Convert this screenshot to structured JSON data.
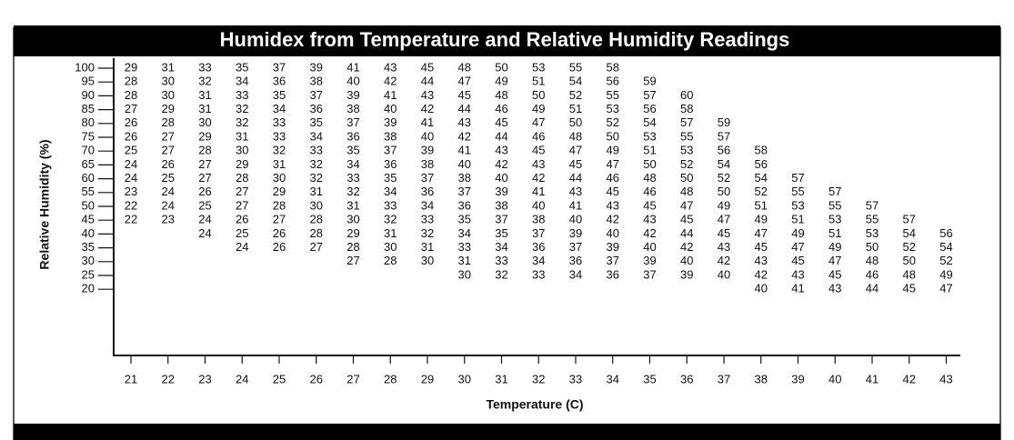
{
  "header": {
    "title": "Humidex from Temperature and Relative Humidity Readings"
  },
  "table": {
    "y_axis_label": "Relative Humidity (%)",
    "x_axis_label": "Temperature (C)",
    "humidity": [
      100,
      95,
      90,
      85,
      80,
      75,
      70,
      65,
      60,
      55,
      50,
      45,
      40,
      35,
      30,
      25,
      20
    ],
    "temperatures": [
      21,
      22,
      23,
      24,
      25,
      26,
      27,
      28,
      29,
      30,
      31,
      32,
      33,
      34,
      35,
      36,
      37,
      38,
      39,
      40,
      41,
      42,
      43
    ],
    "rows": [
      [
        29,
        31,
        33,
        35,
        37,
        39,
        41,
        43,
        45,
        48,
        50,
        53,
        55,
        58,
        null,
        null,
        null,
        null,
        null,
        null,
        null,
        null,
        null
      ],
      [
        28,
        30,
        32,
        34,
        36,
        38,
        40,
        42,
        44,
        47,
        49,
        51,
        54,
        56,
        59,
        null,
        null,
        null,
        null,
        null,
        null,
        null,
        null
      ],
      [
        28,
        30,
        31,
        33,
        35,
        37,
        39,
        41,
        43,
        45,
        48,
        50,
        52,
        55,
        57,
        60,
        null,
        null,
        null,
        null,
        null,
        null,
        null
      ],
      [
        27,
        29,
        31,
        32,
        34,
        36,
        38,
        40,
        42,
        44,
        46,
        49,
        51,
        53,
        56,
        58,
        null,
        null,
        null,
        null,
        null,
        null,
        null
      ],
      [
        26,
        28,
        30,
        32,
        33,
        35,
        37,
        39,
        41,
        43,
        45,
        47,
        50,
        52,
        54,
        57,
        59,
        null,
        null,
        null,
        null,
        null,
        null
      ],
      [
        26,
        27,
        29,
        31,
        33,
        34,
        36,
        38,
        40,
        42,
        44,
        46,
        48,
        50,
        53,
        55,
        57,
        null,
        null,
        null,
        null,
        null,
        null
      ],
      [
        25,
        27,
        28,
        30,
        32,
        33,
        35,
        37,
        39,
        41,
        43,
        45,
        47,
        49,
        51,
        53,
        56,
        58,
        null,
        null,
        null,
        null,
        null
      ],
      [
        24,
        26,
        27,
        29,
        31,
        32,
        34,
        36,
        38,
        40,
        42,
        43,
        45,
        47,
        50,
        52,
        54,
        56,
        null,
        null,
        null,
        null,
        null
      ],
      [
        24,
        25,
        27,
        28,
        30,
        32,
        33,
        35,
        37,
        38,
        40,
        42,
        44,
        46,
        48,
        50,
        52,
        54,
        57,
        null,
        null,
        null,
        null
      ],
      [
        23,
        24,
        26,
        27,
        29,
        31,
        32,
        34,
        36,
        37,
        39,
        41,
        43,
        45,
        46,
        48,
        50,
        52,
        55,
        57,
        null,
        null,
        null
      ],
      [
        22,
        24,
        25,
        27,
        28,
        30,
        31,
        33,
        34,
        36,
        38,
        40,
        41,
        43,
        45,
        47,
        49,
        51,
        53,
        55,
        57,
        null,
        null
      ],
      [
        22,
        23,
        24,
        26,
        27,
        28,
        30,
        32,
        33,
        35,
        37,
        38,
        40,
        42,
        43,
        45,
        47,
        49,
        51,
        53,
        55,
        57,
        null
      ],
      [
        null,
        null,
        24,
        25,
        26,
        28,
        29,
        31,
        32,
        34,
        35,
        37,
        39,
        40,
        42,
        44,
        45,
        47,
        49,
        51,
        53,
        54,
        56
      ],
      [
        null,
        null,
        null,
        24,
        26,
        27,
        28,
        30,
        31,
        33,
        34,
        36,
        37,
        39,
        40,
        42,
        43,
        45,
        47,
        49,
        50,
        52,
        54
      ],
      [
        null,
        null,
        null,
        null,
        null,
        null,
        27,
        28,
        30,
        31,
        33,
        34,
        36,
        37,
        39,
        40,
        42,
        43,
        45,
        47,
        48,
        50,
        52
      ],
      [
        null,
        null,
        null,
        null,
        null,
        null,
        null,
        null,
        null,
        30,
        32,
        33,
        34,
        36,
        37,
        39,
        40,
        42,
        43,
        45,
        46,
        48,
        49
      ],
      [
        null,
        null,
        null,
        null,
        null,
        null,
        null,
        null,
        null,
        null,
        null,
        null,
        null,
        null,
        null,
        null,
        null,
        40,
        41,
        43,
        44,
        45,
        47
      ]
    ]
  }
}
